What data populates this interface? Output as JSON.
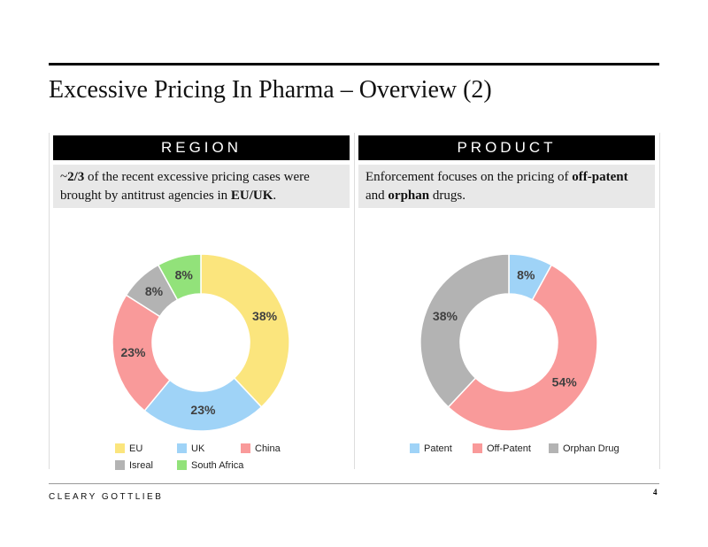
{
  "title": "Excessive Pricing In Pharma – Overview (2)",
  "panels": [
    {
      "header": "REGION",
      "text": [
        {
          "text": "~"
        },
        {
          "text": "2/3",
          "bold": true
        },
        {
          "text": " of the recent excessive pricing cases were brought by antitrust agencies in "
        },
        {
          "text": "EU/UK",
          "bold": true
        },
        {
          "text": "."
        }
      ]
    },
    {
      "header": "PRODUCT",
      "text": [
        {
          "text": "Enforcement focuses on the pricing of "
        },
        {
          "text": "off-patent",
          "bold": true
        },
        {
          "text": " and "
        },
        {
          "text": "orphan",
          "bold": true
        },
        {
          "text": " drugs."
        }
      ]
    }
  ],
  "footer": {
    "brand": "CLEARY GOTTLIEB",
    "page": "4"
  },
  "chart_data": [
    {
      "type": "donut",
      "categories": [
        "EU",
        "UK",
        "China",
        "Isreal",
        "South Africa"
      ],
      "values": [
        38,
        23,
        23,
        8,
        8
      ],
      "value_labels": [
        "38%",
        "23%",
        "23%",
        "8%",
        "8%"
      ],
      "colors": [
        "#fbe57d",
        "#9fd3f7",
        "#f99a9a",
        "#b3b3b3",
        "#92e27a"
      ]
    },
    {
      "type": "donut",
      "categories": [
        "Patent",
        "Off-Patent",
        "Orphan Drug"
      ],
      "values": [
        8,
        54,
        38
      ],
      "value_labels": [
        "8%",
        "54%",
        "38%"
      ],
      "colors": [
        "#9fd3f7",
        "#f99a9a",
        "#b3b3b3"
      ]
    }
  ]
}
